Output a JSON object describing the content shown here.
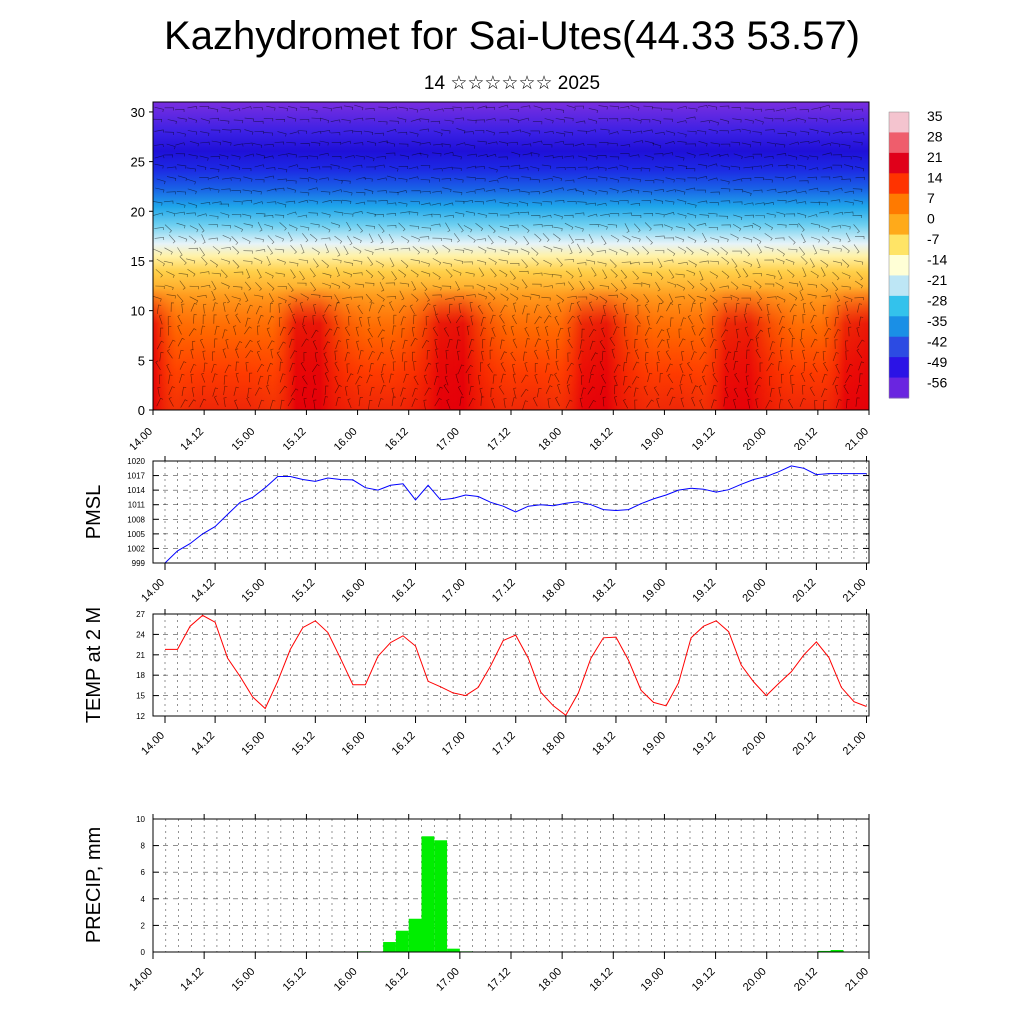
{
  "title": "Kazhydromet for Sai-Utes(44.33 53.57)",
  "subtitle": "14 ☆☆☆☆☆☆ 2025",
  "time_ticks": [
    "14.00",
    "14.12",
    "15.00",
    "15.12",
    "16.00",
    "16.12",
    "17.00",
    "17.12",
    "18.00",
    "18.12",
    "19.00",
    "19.12",
    "20.00",
    "20.12",
    "21.00"
  ],
  "chart_data": [
    {
      "type": "heatmap",
      "description_of_content": "temperature cross-section with wind barbs",
      "ylim": [
        0,
        31
      ],
      "yticks": [
        "0",
        "5",
        "10",
        "15",
        "20",
        "25",
        "30"
      ],
      "colorbar_labels": [
        "35",
        "28",
        "21",
        "14",
        "7",
        "0",
        "-7",
        "-14",
        "-21",
        "-28",
        "-35",
        "-42",
        "-49",
        "-56"
      ],
      "colorbar_colors": [
        "#f4c4cf",
        "#ef5d6c",
        "#e0001a",
        "#ff3300",
        "#ff7a00",
        "#ffaa1a",
        "#ffe466",
        "#ffffd6",
        "#bde6f5",
        "#33c2ec",
        "#1a8fe6",
        "#2c4be3",
        "#2b13e6",
        "#6a25e0"
      ],
      "column_strength": [
        1.0,
        0.25,
        0.05,
        0.05,
        0.05,
        0.25,
        0.9,
        0.95,
        0.3,
        0.05,
        0.05,
        0.3,
        0.9,
        1.0,
        0.4,
        0.1,
        0.05,
        0.2,
        0.7,
        0.9,
        0.4,
        0.1,
        0.05,
        0.2,
        0.7,
        0.8,
        0.4,
        0.05,
        0.05,
        0.7,
        0.9
      ]
    },
    {
      "type": "line",
      "ylabel": "PMSL",
      "ylim": [
        999,
        1020
      ],
      "yticks": [
        "999",
        "1002",
        "1005",
        "1008",
        "1011",
        "1014",
        "1017",
        "1020"
      ],
      "color": "#0000ff",
      "x": [
        0,
        1,
        2,
        3,
        4,
        5,
        6,
        7,
        8,
        9,
        10,
        11,
        12,
        13,
        14,
        15,
        16,
        17,
        18,
        19,
        20,
        21,
        22,
        23,
        24,
        25,
        26,
        27,
        28,
        29,
        30,
        31,
        32,
        33,
        34,
        35,
        36,
        37,
        38,
        39,
        40,
        41,
        42,
        43,
        44,
        45,
        46,
        47,
        48,
        49,
        50,
        51,
        52,
        53,
        54,
        55,
        56
      ],
      "values": [
        999,
        1001.5,
        1003,
        1005,
        1006.5,
        1009,
        1011.5,
        1012.5,
        1014.5,
        1016.8,
        1016.8,
        1016.2,
        1015.8,
        1016.5,
        1016.2,
        1016.1,
        1014.5,
        1014,
        1015,
        1015.3,
        1012,
        1015,
        1012,
        1012.3,
        1013,
        1012.7,
        1011.5,
        1010.7,
        1009.5,
        1010.7,
        1011,
        1010.8,
        1011.3,
        1011.6,
        1011,
        1010,
        1009.8,
        1010,
        1011.2,
        1012.2,
        1013,
        1014,
        1014.4,
        1014.2,
        1013.6,
        1014.1,
        1015.2,
        1016.2,
        1016.8,
        1017.8,
        1019,
        1018.5,
        1017.2,
        1017.4,
        1017.4,
        1017.4,
        1017.4
      ]
    },
    {
      "type": "line",
      "ylabel": "TEMP at 2 M",
      "ylim": [
        12,
        27
      ],
      "yticks": [
        "12",
        "15",
        "18",
        "21",
        "24",
        "27"
      ],
      "color": "#ff0000",
      "x": [
        0,
        1,
        2,
        3,
        4,
        5,
        6,
        7,
        8,
        9,
        10,
        11,
        12,
        13,
        14,
        15,
        16,
        17,
        18,
        19,
        20,
        21,
        22,
        23,
        24,
        25,
        26,
        27,
        28,
        29,
        30,
        31,
        32,
        33,
        34,
        35,
        36,
        37,
        38,
        39,
        40,
        41,
        42,
        43,
        44,
        45,
        46,
        47,
        48,
        49,
        50,
        51,
        52,
        53,
        54,
        55,
        56
      ],
      "values": [
        21.8,
        21.8,
        25.2,
        26.8,
        25.8,
        20.5,
        17.8,
        14.8,
        13.1,
        17.1,
        21.8,
        25,
        26,
        24.3,
        20.5,
        16.6,
        16.6,
        20.8,
        22.8,
        23.8,
        22.3,
        17.1,
        16.3,
        15.4,
        15,
        16.2,
        19.4,
        23.1,
        23.9,
        20.5,
        15.5,
        13.5,
        12.1,
        15.4,
        20.5,
        23.5,
        23.6,
        20.2,
        15.8,
        14,
        13.5,
        16.9,
        23.5,
        25.2,
        26,
        24.4,
        19.5,
        17,
        15,
        16.8,
        18.5,
        21,
        22.9,
        20.6,
        16.2,
        14.1,
        13.4
      ]
    },
    {
      "type": "bar",
      "ylabel": "PRECIP, mm",
      "ylim": [
        0,
        10
      ],
      "yticks": [
        "0",
        "2",
        "4",
        "6",
        "8",
        "10"
      ],
      "color": "#00ee00",
      "x": [
        16,
        18,
        19,
        20,
        21,
        22,
        23,
        24,
        52,
        53
      ],
      "values": [
        0.05,
        0.75,
        1.6,
        2.5,
        8.7,
        8.4,
        0.25,
        0.05,
        0.08,
        0.15
      ]
    }
  ]
}
